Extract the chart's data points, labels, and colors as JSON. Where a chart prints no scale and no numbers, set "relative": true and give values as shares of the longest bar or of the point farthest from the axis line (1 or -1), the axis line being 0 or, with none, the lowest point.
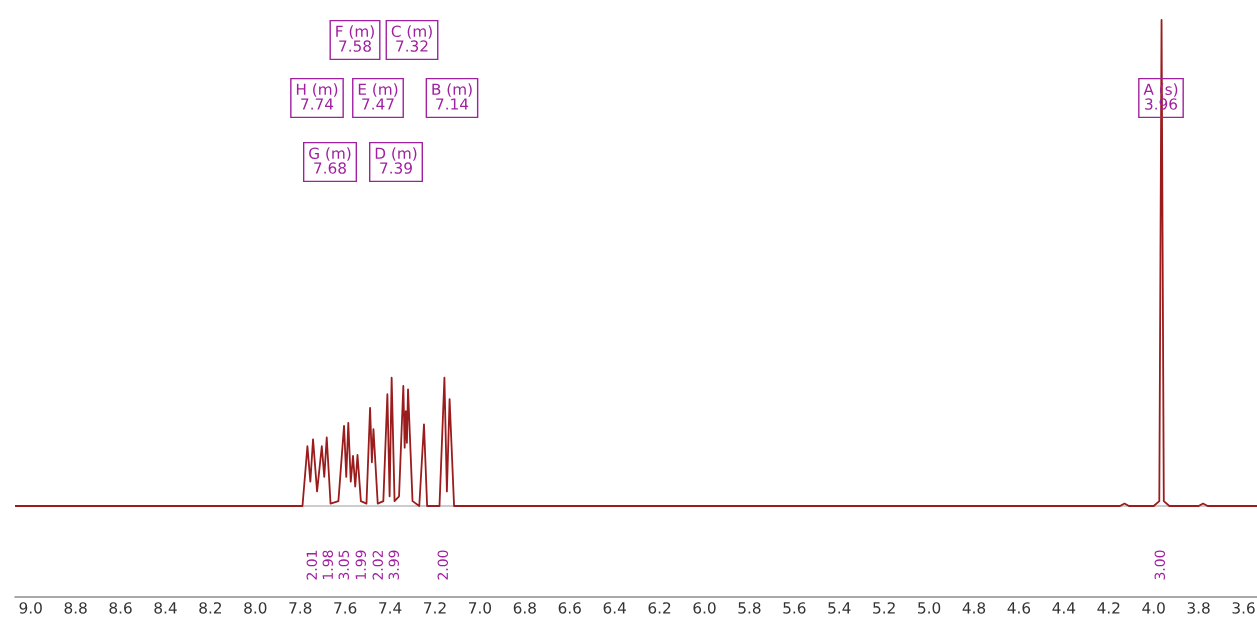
{
  "chart_data": {
    "type": "line",
    "relative": true,
    "x": [
      9.07,
      7.79,
      7.768,
      7.755,
      7.743,
      7.725,
      7.704,
      7.693,
      7.682,
      7.665,
      7.63,
      7.605,
      7.595,
      7.586,
      7.575,
      7.565,
      7.555,
      7.545,
      7.53,
      7.505,
      7.489,
      7.481,
      7.474,
      7.455,
      7.43,
      7.412,
      7.402,
      7.393,
      7.38,
      7.36,
      7.341,
      7.335,
      7.33,
      7.325,
      7.32,
      7.3,
      7.27,
      7.249,
      7.235,
      7.18,
      7.158,
      7.147,
      7.135,
      7.115,
      4.15,
      4.13,
      4.11,
      4.0,
      3.975,
      3.965,
      3.955,
      3.93,
      3.8,
      3.78,
      3.76,
      3.54
    ],
    "series": [
      {
        "color": "#9b1c1c",
        "values": [
          0,
          0,
          0.123,
          0.05,
          0.137,
          0.03,
          0.123,
          0.06,
          0.141,
          0.005,
          0.01,
          0.165,
          0.06,
          0.171,
          0.05,
          0.103,
          0.04,
          0.105,
          0.01,
          0.005,
          0.202,
          0.09,
          0.158,
          0.005,
          0.01,
          0.23,
          0.02,
          0.264,
          0.01,
          0.02,
          0.247,
          0.12,
          0.195,
          0.13,
          0.24,
          0.01,
          0,
          0.168,
          0,
          0,
          0.264,
          0.03,
          0.22,
          0,
          0,
          0.005,
          0,
          0,
          0.01,
          1,
          0.01,
          0,
          0,
          0.005,
          0,
          0
        ]
      }
    ],
    "xlim": [
      9.07,
      3.54
    ],
    "xticks": [
      {
        "value": 9.0,
        "label": "9.0"
      },
      {
        "value": 8.8,
        "label": "8.8"
      },
      {
        "value": 8.6,
        "label": "8.6"
      },
      {
        "value": 8.4,
        "label": "8.4"
      },
      {
        "value": 8.2,
        "label": "8.2"
      },
      {
        "value": 8.0,
        "label": "8.0"
      },
      {
        "value": 7.8,
        "label": "7.8"
      },
      {
        "value": 7.6,
        "label": "7.6"
      },
      {
        "value": 7.4,
        "label": "7.4"
      },
      {
        "value": 7.2,
        "label": "7.2"
      },
      {
        "value": 7.0,
        "label": "7.0"
      },
      {
        "value": 6.8,
        "label": "6.8"
      },
      {
        "value": 6.6,
        "label": "6.6"
      },
      {
        "value": 6.4,
        "label": "6.4"
      },
      {
        "value": 6.2,
        "label": "6.2"
      },
      {
        "value": 6.0,
        "label": "6.0"
      },
      {
        "value": 5.8,
        "label": "5.8"
      },
      {
        "value": 5.6,
        "label": "5.6"
      },
      {
        "value": 5.4,
        "label": "5.4"
      },
      {
        "value": 5.2,
        "label": "5.2"
      },
      {
        "value": 5.0,
        "label": "5.0"
      },
      {
        "value": 4.8,
        "label": "4.8"
      },
      {
        "value": 4.6,
        "label": "4.6"
      },
      {
        "value": 4.4,
        "label": "4.4"
      },
      {
        "value": 4.2,
        "label": "4.2"
      },
      {
        "value": 4.0,
        "label": "4.0"
      },
      {
        "value": 3.8,
        "label": "3.8"
      },
      {
        "value": 3.6,
        "label": "3.6"
      }
    ],
    "tick_labels": "x",
    "grid": false,
    "legend": false,
    "annotations": [
      "F (m)\n7.58",
      "C (m)\n7.32",
      "H (m)\n7.74",
      "E (m)\n7.47",
      "B (m)\n7.14",
      "G (m)\n7.68",
      "D (m)\n7.39",
      "A (s)\n3.96",
      "2.01",
      "1.98",
      "3.05",
      "1.99",
      "2.02",
      "3.99",
      "2.00",
      "3.00"
    ]
  }
}
